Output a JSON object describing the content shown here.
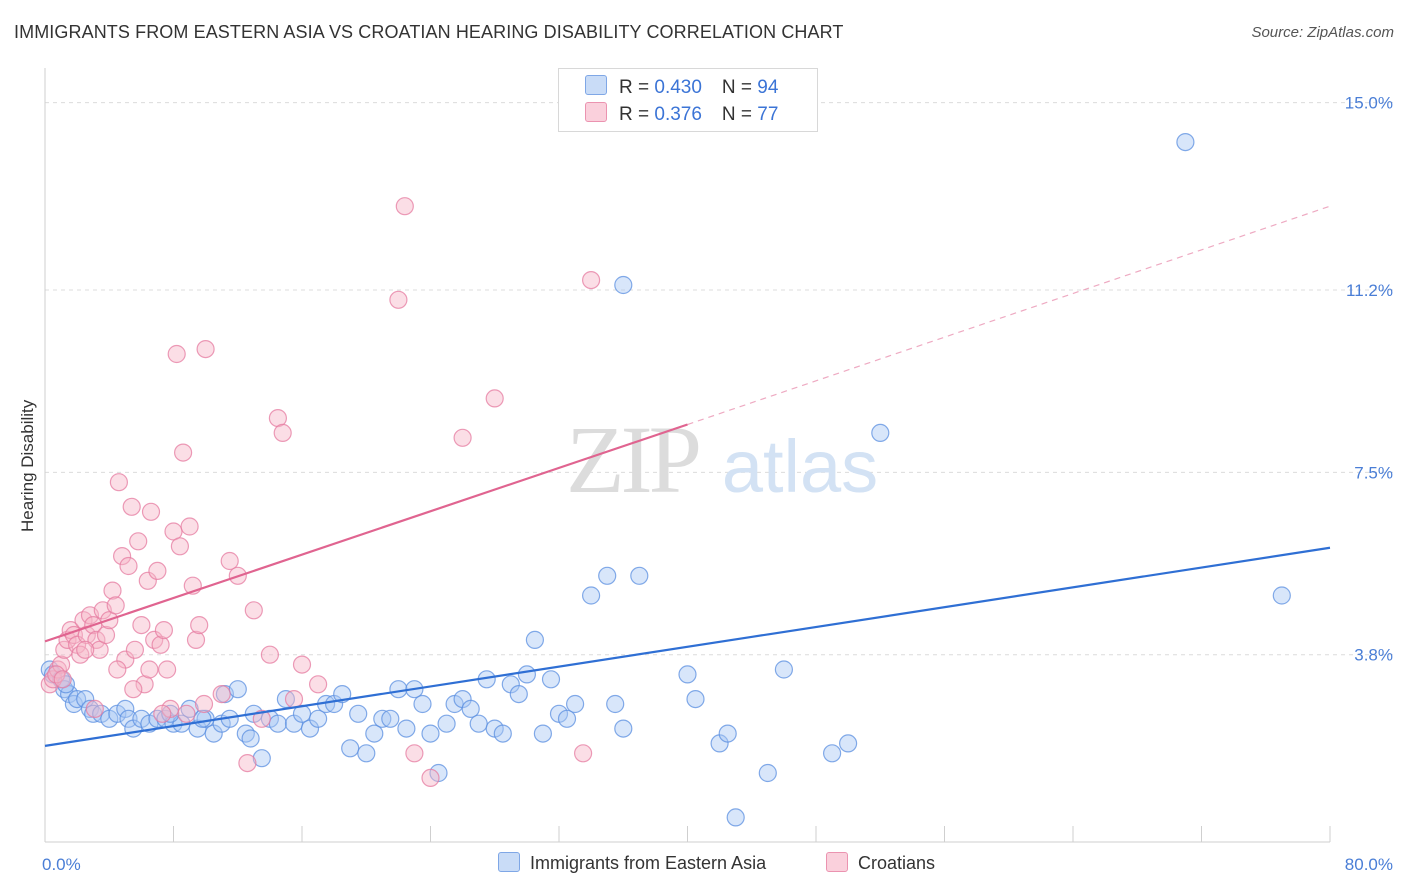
{
  "title": "IMMIGRANTS FROM EASTERN ASIA VS CROATIAN HEARING DISABILITY CORRELATION CHART",
  "source": "Source: ZipAtlas.com",
  "watermark": {
    "zip": "ZIP",
    "atlas": "atlas"
  },
  "legend": {
    "rows": [
      {
        "r_label": "R = ",
        "r_value": "0.430",
        "n_label": "N = ",
        "n_value": "94",
        "color": "#a8c8f4"
      },
      {
        "r_label": "R = ",
        "r_value": " 0.376",
        "n_label": "N = ",
        "n_value": "77",
        "color": "#f7b6c8"
      }
    ]
  },
  "bottom_legend": [
    {
      "label": "Immigrants from Eastern Asia",
      "color": "#a8c8f4"
    },
    {
      "label": "Croatians",
      "color": "#f7b6c8"
    }
  ],
  "chart_data": {
    "type": "scatter",
    "ylabel": "Hearing Disability",
    "xlabel": "",
    "xlim": [
      0,
      80
    ],
    "ylim": [
      0,
      15.5
    ],
    "x_tick_labels": [
      {
        "value": 0,
        "label": "0.0%"
      },
      {
        "value": 80,
        "label": "80.0%"
      }
    ],
    "y_tick_labels": [
      {
        "value": 3.8,
        "label": "3.8%"
      },
      {
        "value": 7.5,
        "label": "7.5%"
      },
      {
        "value": 11.2,
        "label": "11.2%"
      },
      {
        "value": 15.0,
        "label": "15.0%"
      }
    ],
    "x_minor_ticks": [
      0,
      8,
      16,
      24,
      32,
      40,
      48,
      56,
      64,
      72,
      80
    ],
    "grid": true,
    "series": [
      {
        "name": "Immigrants from Eastern Asia",
        "color": "#5b8fe0",
        "fill": "#a8c8f4",
        "trend": {
          "x0": 0,
          "y0": 1.95,
          "x1": 80,
          "y1": 5.97,
          "dash_to": null
        },
        "points": [
          [
            0.3,
            3.5
          ],
          [
            0.5,
            3.4
          ],
          [
            1.0,
            3.3
          ],
          [
            1.2,
            3.1
          ],
          [
            1.5,
            3.0
          ],
          [
            1.8,
            2.8
          ],
          [
            2.0,
            2.9
          ],
          [
            2.5,
            2.9
          ],
          [
            2.8,
            2.7
          ],
          [
            3.0,
            2.6
          ],
          [
            3.5,
            2.6
          ],
          [
            4.0,
            2.5
          ],
          [
            4.5,
            2.6
          ],
          [
            5.0,
            2.7
          ],
          [
            5.2,
            2.5
          ],
          [
            5.5,
            2.3
          ],
          [
            6.0,
            2.5
          ],
          [
            6.5,
            2.4
          ],
          [
            7.0,
            2.5
          ],
          [
            7.5,
            2.5
          ],
          [
            8.0,
            2.4
          ],
          [
            8.5,
            2.4
          ],
          [
            9.0,
            2.7
          ],
          [
            9.5,
            2.3
          ],
          [
            10.0,
            2.5
          ],
          [
            10.5,
            2.2
          ],
          [
            11.0,
            2.4
          ],
          [
            11.2,
            3.0
          ],
          [
            11.5,
            2.5
          ],
          [
            12.0,
            3.1
          ],
          [
            12.5,
            2.2
          ],
          [
            12.8,
            2.1
          ],
          [
            13.0,
            2.6
          ],
          [
            13.5,
            1.7
          ],
          [
            14.0,
            2.5
          ],
          [
            14.5,
            2.4
          ],
          [
            15.0,
            2.9
          ],
          [
            15.5,
            2.4
          ],
          [
            16.0,
            2.6
          ],
          [
            16.5,
            2.3
          ],
          [
            17.0,
            2.5
          ],
          [
            17.5,
            2.8
          ],
          [
            18.0,
            2.8
          ],
          [
            18.5,
            3.0
          ],
          [
            19.0,
            1.9
          ],
          [
            19.5,
            2.6
          ],
          [
            20.0,
            1.8
          ],
          [
            20.5,
            2.2
          ],
          [
            21.0,
            2.5
          ],
          [
            21.5,
            2.5
          ],
          [
            22.0,
            3.1
          ],
          [
            22.5,
            2.3
          ],
          [
            23.0,
            3.1
          ],
          [
            23.5,
            2.8
          ],
          [
            24.0,
            2.2
          ],
          [
            24.5,
            1.4
          ],
          [
            25.0,
            2.4
          ],
          [
            25.5,
            2.8
          ],
          [
            26.0,
            2.9
          ],
          [
            26.5,
            2.7
          ],
          [
            27.0,
            2.4
          ],
          [
            27.5,
            3.3
          ],
          [
            28.0,
            2.3
          ],
          [
            28.5,
            2.2
          ],
          [
            29.0,
            3.2
          ],
          [
            29.5,
            3.0
          ],
          [
            30.0,
            3.4
          ],
          [
            30.5,
            4.1
          ],
          [
            31.0,
            2.2
          ],
          [
            31.5,
            3.3
          ],
          [
            32.0,
            2.6
          ],
          [
            32.5,
            2.5
          ],
          [
            33.0,
            2.8
          ],
          [
            34.0,
            5.0
          ],
          [
            35.0,
            5.4
          ],
          [
            35.5,
            2.8
          ],
          [
            36.0,
            2.3
          ],
          [
            37.0,
            5.4
          ],
          [
            36.0,
            11.3
          ],
          [
            40.0,
            3.4
          ],
          [
            40.5,
            2.9
          ],
          [
            42.0,
            2.0
          ],
          [
            42.5,
            2.2
          ],
          [
            43.0,
            0.5
          ],
          [
            45.0,
            1.4
          ],
          [
            46.0,
            3.5
          ],
          [
            49.0,
            1.8
          ],
          [
            50.0,
            2.0
          ],
          [
            52.0,
            8.3
          ],
          [
            71.0,
            14.2
          ],
          [
            77.0,
            5.0
          ],
          [
            1.3,
            3.2
          ],
          [
            7.8,
            2.6
          ],
          [
            9.8,
            2.5
          ]
        ]
      },
      {
        "name": "Croatians",
        "color": "#e57ba0",
        "fill": "#f7b6c8",
        "trend": {
          "x0": 0,
          "y0": 4.07,
          "x1": 40,
          "y1": 8.47,
          "dash_to": {
            "x": 80,
            "y": 12.9
          }
        },
        "points": [
          [
            0.3,
            3.2
          ],
          [
            0.5,
            3.3
          ],
          [
            0.8,
            3.5
          ],
          [
            1.0,
            3.6
          ],
          [
            1.2,
            3.9
          ],
          [
            1.4,
            4.1
          ],
          [
            1.6,
            4.3
          ],
          [
            1.8,
            4.2
          ],
          [
            2.0,
            4.0
          ],
          [
            2.2,
            3.8
          ],
          [
            2.4,
            4.5
          ],
          [
            2.6,
            4.2
          ],
          [
            2.8,
            4.6
          ],
          [
            3.0,
            4.4
          ],
          [
            3.2,
            4.1
          ],
          [
            3.4,
            3.9
          ],
          [
            3.6,
            4.7
          ],
          [
            3.8,
            4.2
          ],
          [
            4.0,
            4.5
          ],
          [
            4.2,
            5.1
          ],
          [
            4.4,
            4.8
          ],
          [
            4.6,
            7.3
          ],
          [
            4.8,
            5.8
          ],
          [
            5.0,
            3.7
          ],
          [
            5.2,
            5.6
          ],
          [
            5.4,
            6.8
          ],
          [
            5.6,
            3.9
          ],
          [
            5.8,
            6.1
          ],
          [
            6.0,
            4.4
          ],
          [
            6.2,
            3.2
          ],
          [
            6.4,
            5.3
          ],
          [
            6.6,
            6.7
          ],
          [
            6.8,
            4.1
          ],
          [
            7.0,
            5.5
          ],
          [
            7.2,
            4.0
          ],
          [
            7.4,
            4.3
          ],
          [
            7.6,
            3.5
          ],
          [
            7.8,
            2.7
          ],
          [
            8.0,
            6.3
          ],
          [
            8.2,
            9.9
          ],
          [
            8.4,
            6.0
          ],
          [
            8.6,
            7.9
          ],
          [
            8.8,
            2.6
          ],
          [
            9.0,
            6.4
          ],
          [
            9.2,
            5.2
          ],
          [
            9.4,
            4.1
          ],
          [
            9.6,
            4.4
          ],
          [
            10.0,
            10.0
          ],
          [
            11.5,
            5.7
          ],
          [
            12.0,
            5.4
          ],
          [
            12.6,
            1.6
          ],
          [
            13.0,
            4.7
          ],
          [
            14.0,
            3.8
          ],
          [
            14.5,
            8.6
          ],
          [
            14.8,
            8.3
          ],
          [
            16.0,
            3.6
          ],
          [
            17.0,
            3.2
          ],
          [
            22.0,
            11.0
          ],
          [
            22.4,
            12.9
          ],
          [
            23.0,
            1.8
          ],
          [
            24.0,
            1.3
          ],
          [
            26.0,
            8.2
          ],
          [
            28.0,
            9.0
          ],
          [
            33.5,
            1.8
          ],
          [
            34.0,
            11.4
          ],
          [
            0.7,
            3.4
          ],
          [
            1.1,
            3.3
          ],
          [
            2.5,
            3.9
          ],
          [
            3.1,
            2.7
          ],
          [
            4.5,
            3.5
          ],
          [
            5.5,
            3.1
          ],
          [
            6.5,
            3.5
          ],
          [
            7.3,
            2.6
          ],
          [
            9.9,
            2.8
          ],
          [
            11.0,
            3.0
          ],
          [
            13.5,
            2.5
          ],
          [
            15.5,
            2.9
          ]
        ]
      }
    ]
  }
}
